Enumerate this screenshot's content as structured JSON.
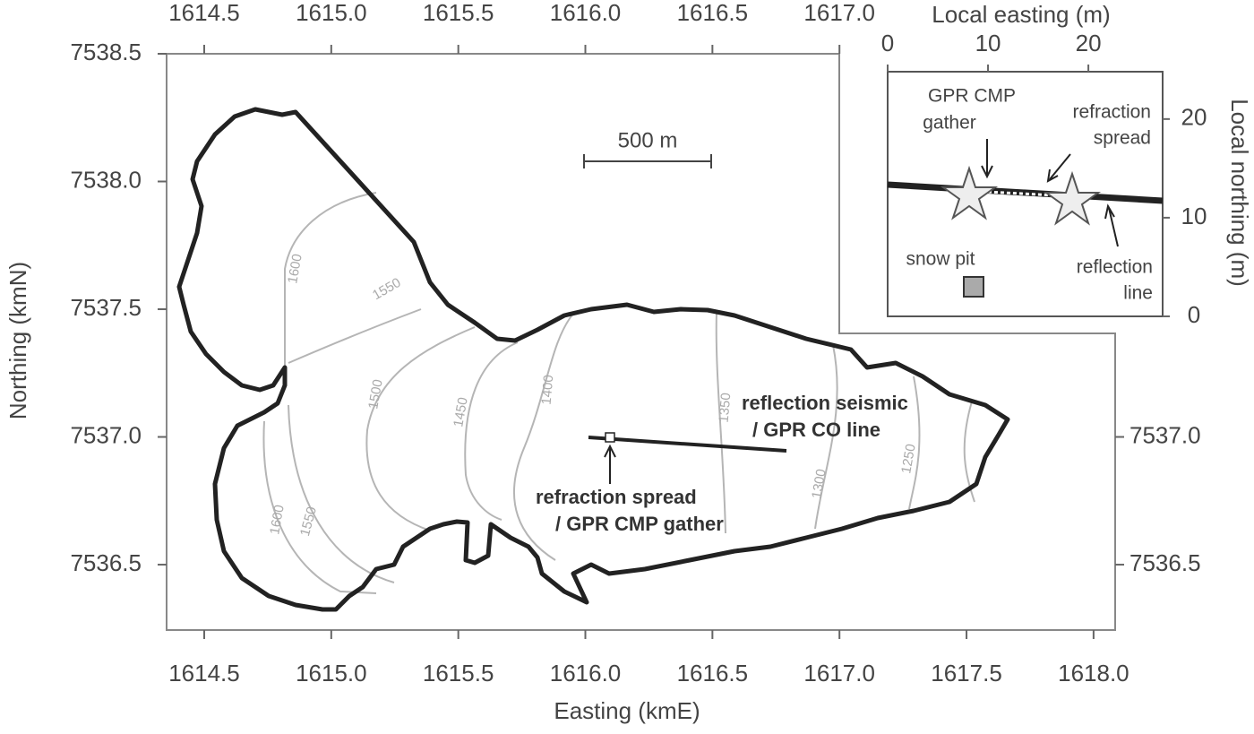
{
  "chart_data": {
    "type": "map",
    "xlabel": "Easting (kmE)",
    "ylabel": "Northing (kmN)",
    "xlim": [
      1614.352,
      1618.085
    ],
    "ylim": [
      7536.244,
      7538.5
    ],
    "xticks": [
      1614.5,
      {
        "value": 1615.0,
        "label": "1615.0"
      },
      1615.5,
      {
        "value": 1616.0,
        "label": "1616.0"
      },
      1616.5,
      {
        "value": 1617.0,
        "label": "1617.0"
      },
      1617.5,
      {
        "value": 1618.0,
        "label": "1618.0"
      }
    ],
    "x2ticks": [
      1614.5,
      {
        "value": 1615.0,
        "label": "1615.0"
      },
      1615.5,
      {
        "value": 1616.0,
        "label": "1616.0"
      },
      1616.5,
      {
        "value": 1617.0,
        "label": "1617.0"
      }
    ],
    "yticks": [
      7536.5,
      {
        "value": 7537.0,
        "label": "7537.0"
      },
      7537.5,
      {
        "value": 7538.0,
        "label": "7538.0"
      },
      7538.5
    ],
    "y2ticks": [
      7536.5,
      {
        "value": 7537.0,
        "label": "7537.0"
      }
    ],
    "contour_labels": [
      1600,
      1550,
      1500,
      1450,
      1400,
      1350,
      1300,
      1250,
      1600,
      1550
    ],
    "scale_bar": "500 m",
    "line_label": [
      "reflection seismic",
      "/ GPR CO line"
    ],
    "spread_label": [
      "refraction spread",
      "/ GPR CMP gather"
    ],
    "inset": {
      "xlabel": "Local easting (m)",
      "ylabel": "Local northing (m)",
      "xlim": [
        0,
        27.4
      ],
      "ylim": [
        0,
        24.8
      ],
      "xticks": [
        0,
        10,
        20
      ],
      "yticks": [
        0,
        10,
        20
      ],
      "gpr_label": [
        "GPR CMP",
        "gather"
      ],
      "refraction_label": [
        "refraction",
        "spread"
      ],
      "pit_label": "snow pit",
      "reflection_label": [
        "reflection",
        "line"
      ]
    }
  }
}
